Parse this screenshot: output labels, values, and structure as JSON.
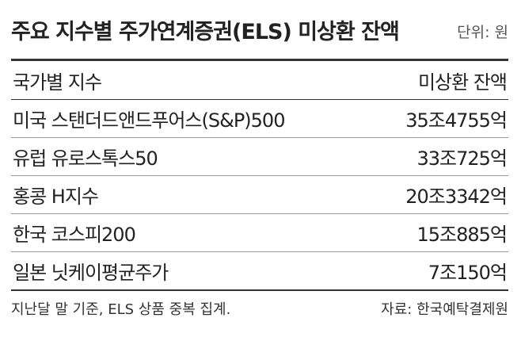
{
  "header": {
    "title": "주요 지수별 주가연계증권(ELS) 미상환 잔액",
    "unit": "단위: 원"
  },
  "table": {
    "columns": [
      "국가별 지수",
      "미상환 잔액"
    ],
    "rows": [
      [
        "미국 스탠더드앤드푸어스(S&P)500",
        "35조4755억"
      ],
      [
        "유럽 유로스톡스50",
        "33조725억"
      ],
      [
        "홍콩 H지수",
        "20조3342억"
      ],
      [
        "한국 코스피200",
        "15조885억"
      ],
      [
        "일본 닛케이평균주가",
        "7조150억"
      ]
    ]
  },
  "footer": {
    "note": "지난달 말 기준, ELS 상품 중복 집계.",
    "source": "자료: 한국예탁결제원"
  }
}
